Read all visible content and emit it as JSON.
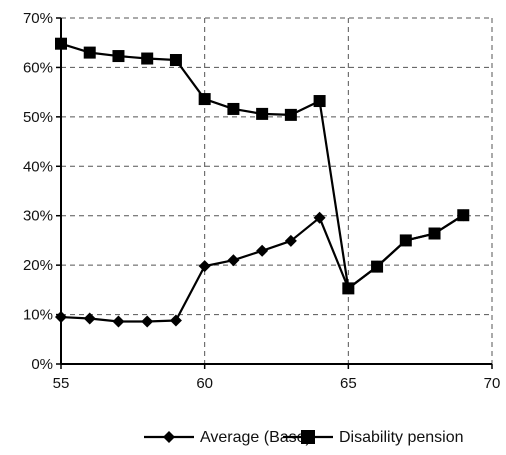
{
  "chart_data": {
    "type": "line",
    "xlim": [
      55,
      70
    ],
    "ylim": [
      0,
      70
    ],
    "x_ticks": [
      "55",
      "60",
      "65",
      "70"
    ],
    "y_ticks": [
      "0%",
      "10%",
      "20%",
      "30%",
      "40%",
      "50%",
      "60%",
      "70%"
    ],
    "grid": "dashed, at major ticks",
    "legend_position": "bottom",
    "series": [
      {
        "name": "Average (Base)",
        "marker": "diamond",
        "color": "#000000",
        "x": [
          55,
          56,
          57,
          58,
          59,
          60,
          61,
          62,
          63,
          64,
          65,
          66,
          67,
          68,
          69
        ],
        "y": [
          9.5,
          9.2,
          8.6,
          8.6,
          8.8,
          19.8,
          21.0,
          22.9,
          24.9,
          29.6,
          15.3,
          19.7,
          25.0,
          26.4,
          30.1
        ]
      },
      {
        "name": "Disability pension",
        "marker": "square",
        "color": "#000000",
        "x": [
          55,
          56,
          57,
          58,
          59,
          60,
          61,
          62,
          63,
          64,
          65,
          66,
          67,
          68,
          69
        ],
        "y": [
          64.8,
          63.0,
          62.3,
          61.8,
          61.5,
          53.6,
          51.6,
          50.6,
          50.4,
          53.2,
          15.3,
          19.7,
          25.0,
          26.4,
          30.1
        ]
      }
    ]
  }
}
